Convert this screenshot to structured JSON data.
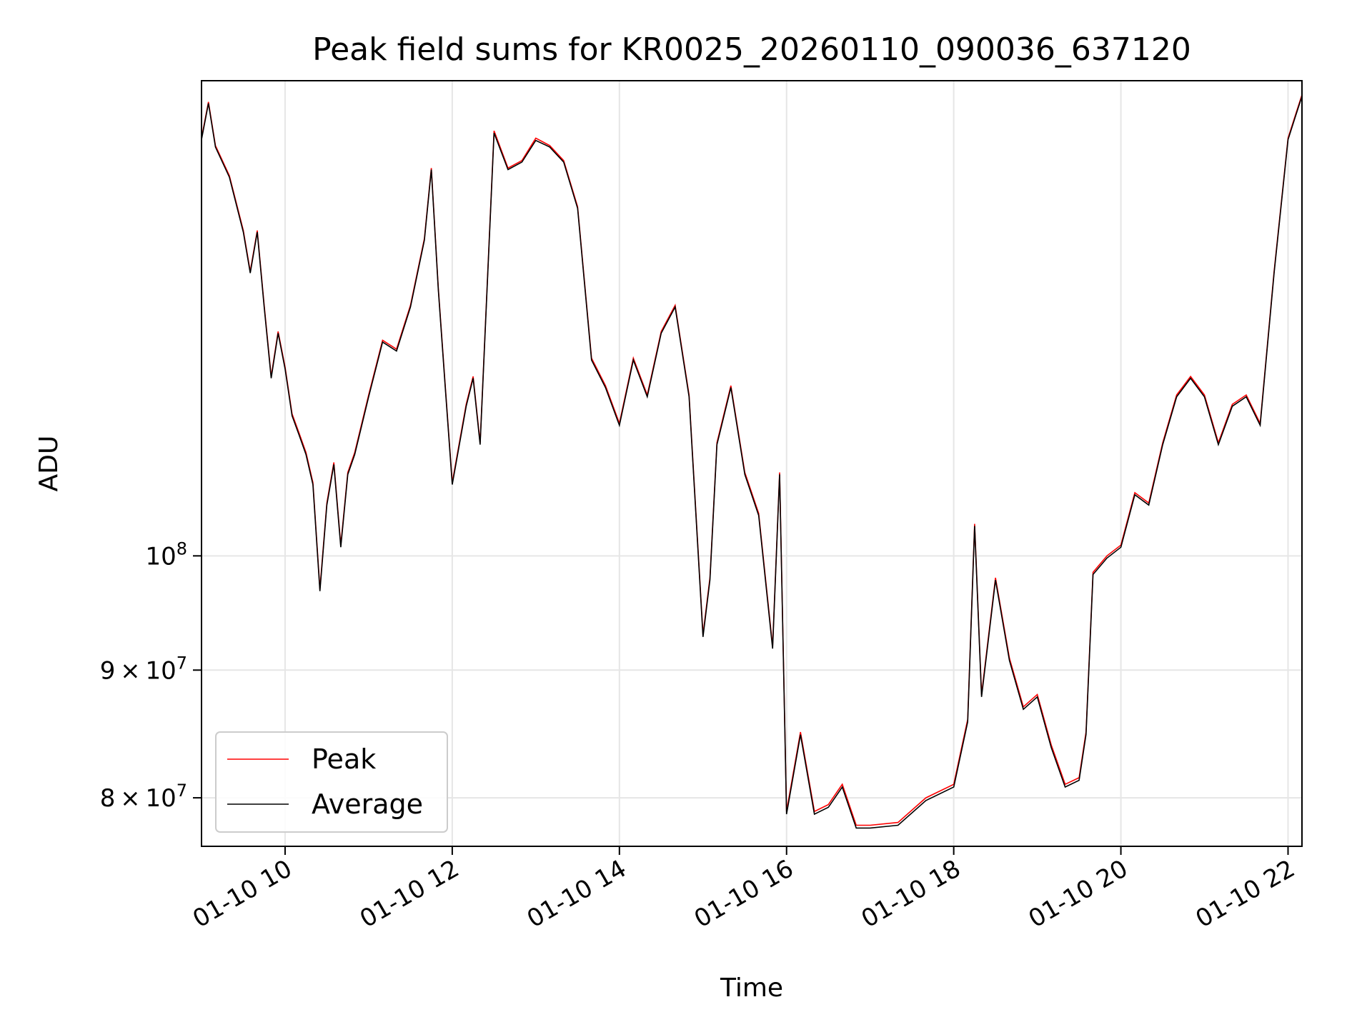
{
  "chart_data": {
    "type": "line",
    "title": "Peak field sums for KR0025_20260110_090036_637120",
    "xlabel": "Time",
    "ylabel": "ADU",
    "y_scale": "log",
    "grid": true,
    "legend_position": "lower-left",
    "xlim": [
      "2026-01-10 09:00",
      "2026-01-10 22:10"
    ],
    "ylim": [
      76500000,
      155000000
    ],
    "x_ticks": [
      {
        "value": "2026-01-10 10:00",
        "label": "01-10 10"
      },
      {
        "value": "2026-01-10 12:00",
        "label": "01-10 12"
      },
      {
        "value": "2026-01-10 14:00",
        "label": "01-10 14"
      },
      {
        "value": "2026-01-10 16:00",
        "label": "01-10 16"
      },
      {
        "value": "2026-01-10 18:00",
        "label": "01-10 18"
      },
      {
        "value": "2026-01-10 20:00",
        "label": "01-10 20"
      },
      {
        "value": "2026-01-10 22:00",
        "label": "01-10 22"
      }
    ],
    "y_ticks": [
      {
        "value": 80000000,
        "mantissa": "8",
        "sep": "×",
        "base": "10",
        "exp": "7"
      },
      {
        "value": 90000000,
        "mantissa": "9",
        "sep": "×",
        "base": "10",
        "exp": "7"
      },
      {
        "value": 100000000,
        "mantissa": "",
        "sep": "",
        "base": "10",
        "exp": "8"
      }
    ],
    "x": [
      "2026-01-10 09:00",
      "2026-01-10 09:05",
      "2026-01-10 09:10",
      "2026-01-10 09:20",
      "2026-01-10 09:30",
      "2026-01-10 09:35",
      "2026-01-10 09:40",
      "2026-01-10 09:45",
      "2026-01-10 09:50",
      "2026-01-10 09:55",
      "2026-01-10 10:00",
      "2026-01-10 10:05",
      "2026-01-10 10:10",
      "2026-01-10 10:15",
      "2026-01-10 10:20",
      "2026-01-10 10:25",
      "2026-01-10 10:30",
      "2026-01-10 10:35",
      "2026-01-10 10:40",
      "2026-01-10 10:45",
      "2026-01-10 10:50",
      "2026-01-10 11:00",
      "2026-01-10 11:10",
      "2026-01-10 11:20",
      "2026-01-10 11:30",
      "2026-01-10 11:40",
      "2026-01-10 11:45",
      "2026-01-10 11:50",
      "2026-01-10 11:55",
      "2026-01-10 12:00",
      "2026-01-10 12:10",
      "2026-01-10 12:15",
      "2026-01-10 12:20",
      "2026-01-10 12:30",
      "2026-01-10 12:40",
      "2026-01-10 12:50",
      "2026-01-10 13:00",
      "2026-01-10 13:10",
      "2026-01-10 13:20",
      "2026-01-10 13:30",
      "2026-01-10 13:40",
      "2026-01-10 13:50",
      "2026-01-10 14:00",
      "2026-01-10 14:10",
      "2026-01-10 14:20",
      "2026-01-10 14:30",
      "2026-01-10 14:40",
      "2026-01-10 14:50",
      "2026-01-10 15:00",
      "2026-01-10 15:05",
      "2026-01-10 15:10",
      "2026-01-10 15:20",
      "2026-01-10 15:30",
      "2026-01-10 15:40",
      "2026-01-10 15:50",
      "2026-01-10 15:55",
      "2026-01-10 16:00",
      "2026-01-10 16:10",
      "2026-01-10 16:20",
      "2026-01-10 16:30",
      "2026-01-10 16:40",
      "2026-01-10 16:50",
      "2026-01-10 17:00",
      "2026-01-10 17:20",
      "2026-01-10 17:40",
      "2026-01-10 18:00",
      "2026-01-10 18:10",
      "2026-01-10 18:15",
      "2026-01-10 18:20",
      "2026-01-10 18:30",
      "2026-01-10 18:40",
      "2026-01-10 18:50",
      "2026-01-10 19:00",
      "2026-01-10 19:10",
      "2026-01-10 19:20",
      "2026-01-10 19:30",
      "2026-01-10 19:35",
      "2026-01-10 19:40",
      "2026-01-10 19:50",
      "2026-01-10 20:00",
      "2026-01-10 20:10",
      "2026-01-10 20:20",
      "2026-01-10 20:30",
      "2026-01-10 20:40",
      "2026-01-10 20:50",
      "2026-01-10 21:00",
      "2026-01-10 21:10",
      "2026-01-10 21:20",
      "2026-01-10 21:30",
      "2026-01-10 21:40",
      "2026-01-10 21:50",
      "2026-01-10 22:00",
      "2026-01-10 22:05",
      "2026-01-10 22:10"
    ],
    "series": [
      {
        "name": "Peak",
        "color": "#ff0000",
        "values": [
          147000000,
          152000000,
          146000000,
          142000000,
          135000000,
          130000000,
          135000000,
          126000000,
          118000000,
          123000000,
          119000000,
          114000000,
          112000000,
          110000000,
          107000000,
          97000000,
          105000000,
          109000000,
          101000000,
          108000000,
          110000000,
          116000000,
          122000000,
          121000000,
          126000000,
          134000000,
          143000000,
          128000000,
          117000000,
          107000000,
          115000000,
          118000000,
          111000000,
          148000000,
          143000000,
          144000000,
          147000000,
          146000000,
          144000000,
          138000000,
          120000000,
          117000000,
          113000000,
          120000000,
          116000000,
          123000000,
          126000000,
          116000000,
          93000000,
          98000000,
          111000000,
          117000000,
          108000000,
          104000000,
          92000000,
          108000000,
          79000000,
          85000000,
          79000000,
          79500000,
          81000000,
          78000000,
          78000000,
          78200000,
          80000000,
          81000000,
          86000000,
          103000000,
          88000000,
          98000000,
          91000000,
          87000000,
          88000000,
          84000000,
          81000000,
          81500000,
          85000000,
          98500000,
          100000000,
          101000000,
          106000000,
          105000000,
          111000000,
          116000000,
          118000000,
          116000000,
          111000000,
          115000000,
          116000000,
          113000000,
          130000000,
          147000000,
          150000000,
          153000000
        ]
      },
      {
        "name": "Average",
        "color": "#000000",
        "values": [
          146800000,
          151800000,
          145800000,
          141800000,
          134800000,
          129800000,
          134800000,
          125800000,
          117800000,
          122800000,
          118800000,
          113800000,
          111800000,
          109800000,
          106800000,
          96800000,
          104800000,
          108800000,
          100800000,
          107800000,
          109800000,
          115800000,
          121800000,
          120800000,
          125800000,
          133800000,
          142800000,
          127800000,
          116800000,
          106800000,
          114800000,
          117800000,
          110800000,
          147700000,
          142800000,
          143800000,
          146700000,
          145800000,
          143800000,
          137800000,
          119800000,
          116800000,
          112800000,
          119800000,
          115800000,
          122800000,
          125800000,
          115800000,
          92800000,
          97800000,
          110800000,
          116800000,
          107800000,
          103800000,
          91800000,
          107800000,
          78800000,
          84800000,
          78800000,
          79300000,
          80800000,
          77800000,
          77800000,
          78000000,
          79800000,
          80800000,
          85800000,
          102800000,
          87800000,
          97800000,
          90800000,
          86800000,
          87800000,
          83800000,
          80800000,
          81300000,
          84800000,
          98300000,
          99800000,
          100800000,
          105800000,
          104800000,
          110800000,
          115800000,
          117800000,
          115800000,
          110800000,
          114800000,
          115800000,
          112800000,
          129800000,
          146800000,
          149800000,
          152800000
        ]
      }
    ]
  }
}
